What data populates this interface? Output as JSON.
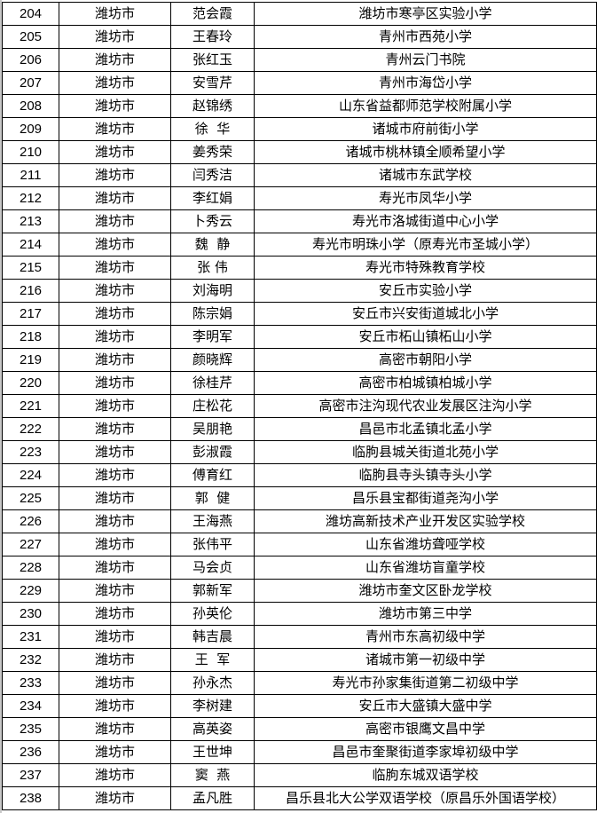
{
  "rows": [
    {
      "no": "204",
      "city": "潍坊市",
      "name": "范会霞",
      "school": "潍坊市寒亭区实验小学"
    },
    {
      "no": "205",
      "city": "潍坊市",
      "name": "王春玲",
      "school": "青州市西苑小学"
    },
    {
      "no": "206",
      "city": "潍坊市",
      "name": "张红玉",
      "school": "青州云门书院"
    },
    {
      "no": "207",
      "city": "潍坊市",
      "name": "安雪芹",
      "school": "青州市海岱小学"
    },
    {
      "no": "208",
      "city": "潍坊市",
      "name": "赵锦绣",
      "school": "山东省益都师范学校附属小学"
    },
    {
      "no": "209",
      "city": "潍坊市",
      "name": "徐  华",
      "school": "诸城市府前街小学"
    },
    {
      "no": "210",
      "city": "潍坊市",
      "name": "姜秀荣",
      "school": "诸城市桃林镇全顺希望小学"
    },
    {
      "no": "211",
      "city": "潍坊市",
      "name": "闫秀洁",
      "school": "诸城市东武学校"
    },
    {
      "no": "212",
      "city": "潍坊市",
      "name": "李红娟",
      "school": "寿光市凤华小学"
    },
    {
      "no": "213",
      "city": "潍坊市",
      "name": "卜秀云",
      "school": "寿光市洛城街道中心小学"
    },
    {
      "no": "214",
      "city": "潍坊市",
      "name": "魏  静",
      "school": "寿光市明珠小学（原寿光市圣城小学）"
    },
    {
      "no": "215",
      "city": "潍坊市",
      "name": "张 伟",
      "school": "寿光市特殊教育学校"
    },
    {
      "no": "216",
      "city": "潍坊市",
      "name": "刘海明",
      "school": "安丘市实验小学"
    },
    {
      "no": "217",
      "city": "潍坊市",
      "name": "陈宗娟",
      "school": "安丘市兴安街道城北小学"
    },
    {
      "no": "218",
      "city": "潍坊市",
      "name": "李明军",
      "school": "安丘市柘山镇柘山小学"
    },
    {
      "no": "219",
      "city": "潍坊市",
      "name": "颜晓辉",
      "school": "高密市朝阳小学"
    },
    {
      "no": "220",
      "city": "潍坊市",
      "name": "徐桂芹",
      "school": "高密市柏城镇柏城小学"
    },
    {
      "no": "221",
      "city": "潍坊市",
      "name": "庄松花",
      "school": "高密市注沟现代农业发展区注沟小学"
    },
    {
      "no": "222",
      "city": "潍坊市",
      "name": "吴朋艳",
      "school": "昌邑市北孟镇北孟小学"
    },
    {
      "no": "223",
      "city": "潍坊市",
      "name": "彭淑霞",
      "school": "临朐县城关街道北苑小学"
    },
    {
      "no": "224",
      "city": "潍坊市",
      "name": "傅育红",
      "school": "临朐县寺头镇寺头小学"
    },
    {
      "no": "225",
      "city": "潍坊市",
      "name": "郭  健",
      "school": "昌乐县宝都街道尧沟小学"
    },
    {
      "no": "226",
      "city": "潍坊市",
      "name": "王海燕",
      "school": "潍坊高新技术产业开发区实验学校"
    },
    {
      "no": "227",
      "city": "潍坊市",
      "name": "张伟平",
      "school": "山东省潍坊聋哑学校"
    },
    {
      "no": "228",
      "city": "潍坊市",
      "name": "马会贞",
      "school": "山东省潍坊盲童学校"
    },
    {
      "no": "229",
      "city": "潍坊市",
      "name": "郭新军",
      "school": "潍坊市奎文区卧龙学校"
    },
    {
      "no": "230",
      "city": "潍坊市",
      "name": "孙英伦",
      "school": "潍坊市第三中学"
    },
    {
      "no": "231",
      "city": "潍坊市",
      "name": "韩吉晨",
      "school": "青州市东高初级中学"
    },
    {
      "no": "232",
      "city": "潍坊市",
      "name": "王  军",
      "school": "诸城市第一初级中学"
    },
    {
      "no": "233",
      "city": "潍坊市",
      "name": "孙永杰",
      "school": "寿光市孙家集街道第二初级中学"
    },
    {
      "no": "234",
      "city": "潍坊市",
      "name": "李树建",
      "school": "安丘市大盛镇大盛中学"
    },
    {
      "no": "235",
      "city": "潍坊市",
      "name": "高英姿",
      "school": "高密市银鹰文昌中学"
    },
    {
      "no": "236",
      "city": "潍坊市",
      "name": "王世坤",
      "school": "昌邑市奎聚街道李家埠初级中学"
    },
    {
      "no": "237",
      "city": "潍坊市",
      "name": "窦  燕",
      "school": "临朐东城双语学校"
    },
    {
      "no": "238",
      "city": "潍坊市",
      "name": "孟凡胜",
      "school": "昌乐县北大公学双语学校（原昌乐外国语学校）"
    }
  ]
}
